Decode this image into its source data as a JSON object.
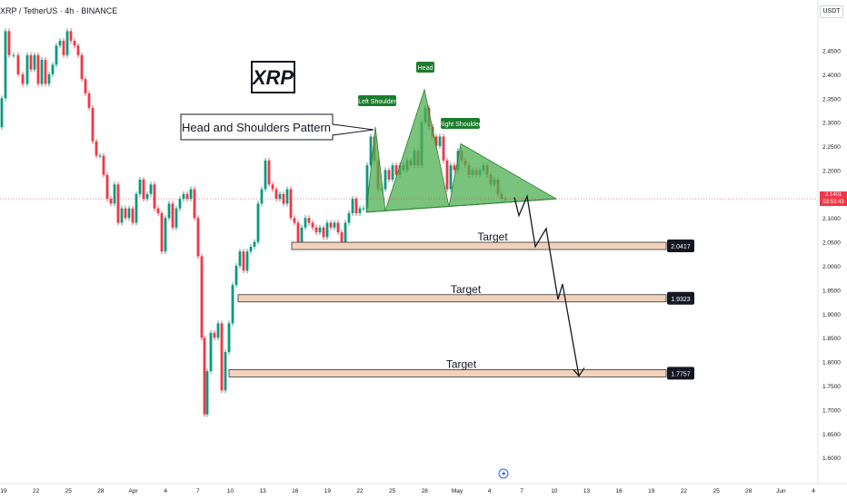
{
  "header": {
    "symbol": "XRP / TetherUS · 4h · BINANCE",
    "currency": "USDT"
  },
  "current_price": {
    "value": "2.1401",
    "countdown": "03:53:43",
    "price": 2.1401,
    "color": "#f23645"
  },
  "annotations": {
    "logo": "XRP",
    "callout": "Head and Shoulders Pattern",
    "left_shoulder": "Left Shoulder",
    "head": "Head",
    "right_shoulder": "Right Shoulder",
    "target_label": "Target"
  },
  "colors": {
    "up": "#089981",
    "down": "#f23645",
    "pattern": "#4caf50",
    "zone": "#f2d2bc",
    "zone_border": "#333333"
  },
  "chart_data": {
    "type": "candlestick",
    "ylim": [
      1.57,
      2.54
    ],
    "y_ticks": [
      "2.4500",
      "2.4000",
      "2.3500",
      "2.3000",
      "2.2500",
      "2.2000",
      "2.1500",
      "2.1000",
      "2.0500",
      "2.0000",
      "1.9500",
      "1.9000",
      "1.8500",
      "1.8000",
      "1.7500",
      "1.7000",
      "1.6500",
      "1.6000"
    ],
    "x_ticks": [
      "19",
      "22",
      "25",
      "28",
      "Apr",
      "4",
      "7",
      "10",
      "13",
      "16",
      "19",
      "22",
      "25",
      "28",
      "May",
      "4",
      "7",
      "10",
      "13",
      "16",
      "19",
      "22",
      "25",
      "28",
      "Jun",
      "4"
    ],
    "price_path": [
      [
        0,
        2.29
      ],
      [
        4,
        2.35
      ],
      [
        8,
        2.49
      ],
      [
        12,
        2.44
      ],
      [
        18,
        2.44
      ],
      [
        22,
        2.4
      ],
      [
        28,
        2.38
      ],
      [
        32,
        2.44
      ],
      [
        36,
        2.41
      ],
      [
        40,
        2.44
      ],
      [
        44,
        2.38
      ],
      [
        48,
        2.43
      ],
      [
        52,
        2.38
      ],
      [
        56,
        2.4
      ],
      [
        60,
        2.42
      ],
      [
        64,
        2.46
      ],
      [
        68,
        2.47
      ],
      [
        72,
        2.44
      ],
      [
        76,
        2.49
      ],
      [
        80,
        2.47
      ],
      [
        84,
        2.46
      ],
      [
        88,
        2.44
      ],
      [
        92,
        2.39
      ],
      [
        96,
        2.36
      ],
      [
        100,
        2.33
      ],
      [
        104,
        2.26
      ],
      [
        108,
        2.23
      ],
      [
        112,
        2.23
      ],
      [
        116,
        2.19
      ],
      [
        120,
        2.14
      ],
      [
        124,
        2.13
      ],
      [
        128,
        2.17
      ],
      [
        132,
        2.09
      ],
      [
        136,
        2.12
      ],
      [
        140,
        2.1
      ],
      [
        144,
        2.12
      ],
      [
        148,
        2.09
      ],
      [
        152,
        2.15
      ],
      [
        156,
        2.18
      ],
      [
        160,
        2.14
      ],
      [
        164,
        2.15
      ],
      [
        168,
        2.17
      ],
      [
        172,
        2.12
      ],
      [
        176,
        2.11
      ],
      [
        180,
        2.03
      ],
      [
        184,
        2.1
      ],
      [
        188,
        2.13
      ],
      [
        192,
        2.08
      ],
      [
        196,
        2.12
      ],
      [
        200,
        2.14
      ],
      [
        204,
        2.15
      ],
      [
        208,
        2.14
      ],
      [
        212,
        2.16
      ],
      [
        216,
        2.1
      ],
      [
        220,
        2.02
      ],
      [
        224,
        1.85
      ],
      [
        226,
        1.69
      ],
      [
        230,
        1.78
      ],
      [
        234,
        1.86
      ],
      [
        238,
        1.85
      ],
      [
        242,
        1.88
      ],
      [
        246,
        1.74
      ],
      [
        250,
        1.82
      ],
      [
        254,
        1.88
      ],
      [
        258,
        1.96
      ],
      [
        262,
        2.0
      ],
      [
        266,
        2.03
      ],
      [
        270,
        1.99
      ],
      [
        274,
        2.03
      ],
      [
        278,
        2.04
      ],
      [
        282,
        2.05
      ],
      [
        286,
        2.13
      ],
      [
        290,
        2.16
      ],
      [
        294,
        2.22
      ],
      [
        298,
        2.17
      ],
      [
        302,
        2.16
      ],
      [
        306,
        2.14
      ],
      [
        310,
        2.15
      ],
      [
        314,
        2.13
      ],
      [
        318,
        2.16
      ],
      [
        322,
        2.1
      ],
      [
        326,
        2.09
      ],
      [
        330,
        2.05
      ],
      [
        334,
        2.08
      ],
      [
        338,
        2.1
      ],
      [
        342,
        2.09
      ],
      [
        346,
        2.08
      ],
      [
        350,
        2.07
      ],
      [
        354,
        2.08
      ],
      [
        358,
        2.06
      ],
      [
        362,
        2.09
      ],
      [
        366,
        2.08
      ],
      [
        370,
        2.09
      ],
      [
        374,
        2.07
      ],
      [
        378,
        2.05
      ],
      [
        382,
        2.09
      ],
      [
        386,
        2.11
      ],
      [
        390,
        2.14
      ],
      [
        394,
        2.11
      ],
      [
        398,
        2.12
      ],
      [
        402,
        2.12
      ],
      [
        406,
        2.21
      ],
      [
        410,
        2.27
      ],
      [
        414,
        2.22
      ],
      [
        418,
        2.16
      ],
      [
        422,
        2.16
      ],
      [
        426,
        2.2
      ],
      [
        430,
        2.18
      ],
      [
        434,
        2.21
      ],
      [
        438,
        2.19
      ],
      [
        442,
        2.21
      ],
      [
        446,
        2.2
      ],
      [
        450,
        2.22
      ],
      [
        454,
        2.21
      ],
      [
        458,
        2.24
      ],
      [
        462,
        2.21
      ],
      [
        466,
        2.3
      ],
      [
        470,
        2.33
      ],
      [
        474,
        2.29
      ],
      [
        478,
        2.27
      ],
      [
        482,
        2.25
      ],
      [
        486,
        2.27
      ],
      [
        490,
        2.22
      ],
      [
        494,
        2.16
      ],
      [
        498,
        2.21
      ],
      [
        502,
        2.2
      ],
      [
        506,
        2.24
      ],
      [
        510,
        2.22
      ],
      [
        514,
        2.21
      ],
      [
        518,
        2.19
      ],
      [
        522,
        2.2
      ],
      [
        526,
        2.19
      ],
      [
        530,
        2.2
      ],
      [
        534,
        2.21
      ],
      [
        538,
        2.19
      ],
      [
        542,
        2.17
      ],
      [
        546,
        2.18
      ],
      [
        550,
        2.15
      ],
      [
        554,
        2.14
      ],
      [
        558,
        2.14
      ]
    ],
    "neckline": {
      "from": [
        403,
        2.112
      ],
      "to": [
        612,
        2.14
      ]
    },
    "shoulder_triangles": [
      {
        "label": "left_shoulder",
        "points": [
          [
            403,
            2.112
          ],
          [
            413,
            2.29
          ],
          [
            424,
            2.115
          ]
        ]
      },
      {
        "label": "head",
        "points": [
          [
            424,
            2.115
          ],
          [
            467,
            2.368
          ],
          [
            494,
            2.124
          ]
        ]
      },
      {
        "label": "right_shoulder",
        "points": [
          [
            494,
            2.124
          ],
          [
            507,
            2.255
          ],
          [
            612,
            2.14
          ]
        ]
      }
    ],
    "projection_path": [
      [
        566,
        2.143
      ],
      [
        571,
        2.105
      ],
      [
        580,
        2.145
      ],
      [
        589,
        2.04
      ],
      [
        601,
        2.078
      ],
      [
        614,
        1.93
      ],
      [
        619,
        1.962
      ],
      [
        637,
        1.77
      ],
      [
        643,
        1.782
      ]
    ],
    "targets": [
      {
        "label": "Target",
        "value": 2.0417,
        "price_text": "2.0417",
        "x_start": 321
      },
      {
        "label": "Target",
        "value": 1.9323,
        "price_text": "1.9323",
        "x_start": 262
      },
      {
        "label": "Target",
        "value": 1.7757,
        "price_text": "1.7757",
        "x_start": 252
      }
    ],
    "grid": false,
    "legend": "none"
  }
}
